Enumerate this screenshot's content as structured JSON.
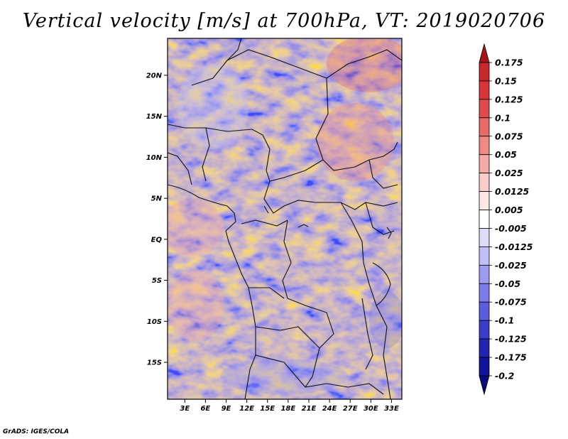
{
  "title": "Vertical velocity [m/s] at 700hPa, VT: 2019020706",
  "credit": "GrADS: IGES/COLA",
  "map": {
    "lat_labels": [
      "20N",
      "15N",
      "10N",
      "5N",
      "EQ",
      "5S",
      "10S",
      "15S"
    ],
    "lat_values": [
      20,
      15,
      10,
      5,
      0,
      -5,
      -10,
      -15
    ],
    "lon_labels": [
      "3E",
      "6E",
      "9E",
      "12E",
      "15E",
      "18E",
      "21E",
      "24E",
      "27E",
      "30E",
      "33E"
    ],
    "lon_values": [
      3,
      6,
      9,
      12,
      15,
      18,
      21,
      24,
      27,
      30,
      33
    ],
    "lat_range": [
      -19.5,
      24.5
    ],
    "lon_range": [
      0.5,
      34.5
    ]
  },
  "colorbar": {
    "labels": [
      "0.175",
      "0.15",
      "0.125",
      "0.1",
      "0.075",
      "0.05",
      "0.025",
      "0.0125",
      "0.005",
      "-0.005",
      "-0.0125",
      "-0.025",
      "-0.05",
      "-0.075",
      "-0.1",
      "-0.125",
      "-0.175",
      "-0.2"
    ],
    "colors": [
      "#a5161a",
      "#c8272c",
      "#d8343a",
      "#e04a4c",
      "#e76a66",
      "#ee8a85",
      "#f4aaa5",
      "#f9cdca",
      "#fde8e6",
      "#ffffff",
      "#dcdcfa",
      "#c0c0f6",
      "#9c9cf0",
      "#7c7ce8",
      "#5c5cdc",
      "#3c3cca",
      "#2424b4",
      "#12129a",
      "#0a0a7a"
    ]
  }
}
